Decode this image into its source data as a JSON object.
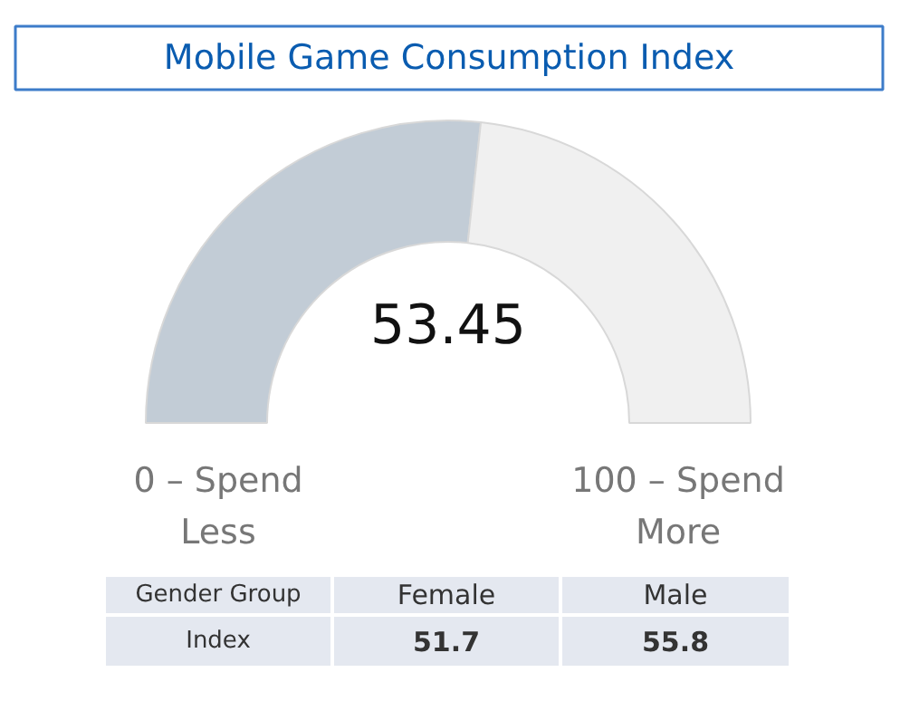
{
  "chart_data": {
    "type": "donut",
    "title": "Mobile Game Consumption Index",
    "categories": [
      null,
      null
    ],
    "values": [
      53.45,
      46.55
    ],
    "colors": [
      "#c2ccd6",
      "#f0f0f0"
    ],
    "annotations": [
      "53.45",
      "0 – Spend Less",
      "100 – Spend More",
      "Gender Group",
      "Female",
      "Male",
      "Index",
      "51.7",
      "55.8"
    ]
  }
}
